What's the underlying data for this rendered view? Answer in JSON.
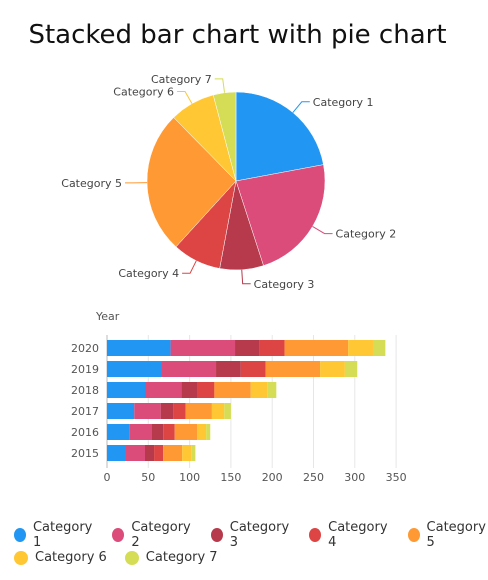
{
  "chart_data": [
    {
      "type": "pie",
      "title": "Stacked bar chart with pie chart",
      "categories": [
        "Category 1",
        "Category 2",
        "Category 3",
        "Category 4",
        "Category 5",
        "Category 6",
        "Category 7"
      ],
      "values": [
        75,
        78,
        27,
        30,
        88,
        28,
        14
      ],
      "colors": [
        "#2196F3",
        "#DB4C7A",
        "#B73A4C",
        "#DD4444",
        "#FF9933",
        "#FFC733",
        "#D4DD55"
      ]
    },
    {
      "type": "bar",
      "orientation": "horizontal",
      "stacked": true,
      "ylabel": "Year",
      "categories": [
        "2020",
        "2019",
        "2018",
        "2017",
        "2016",
        "2015"
      ],
      "xlim": [
        0,
        350
      ],
      "xticks": [
        0,
        50,
        100,
        150,
        200,
        250,
        300,
        350
      ],
      "grid": true,
      "legend": "bottom",
      "series": [
        {
          "name": "Category 1",
          "color": "#2196F3",
          "values": [
            77,
            66,
            46,
            33,
            27,
            23
          ]
        },
        {
          "name": "Category 2",
          "color": "#DB4C7A",
          "values": [
            78,
            66,
            44,
            32,
            27,
            23
          ]
        },
        {
          "name": "Category 3",
          "color": "#B73A4C",
          "values": [
            30,
            30,
            20,
            15,
            14,
            11
          ]
        },
        {
          "name": "Category 4",
          "color": "#DD4444",
          "values": [
            30,
            30,
            20,
            15,
            14,
            11
          ]
        },
        {
          "name": "Category 5",
          "color": "#FF9933",
          "values": [
            77,
            66,
            44,
            32,
            27,
            23
          ]
        },
        {
          "name": "Category 6",
          "color": "#FFC733",
          "values": [
            30,
            30,
            20,
            15,
            11,
            11
          ]
        },
        {
          "name": "Category 7",
          "color": "#D4DD55",
          "values": [
            15,
            15,
            11,
            8,
            5,
            5
          ]
        }
      ]
    }
  ]
}
